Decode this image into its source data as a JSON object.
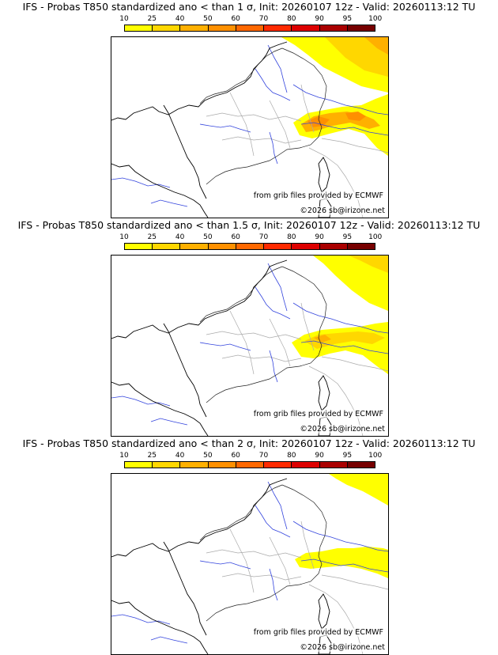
{
  "legend_levels": [
    "10",
    "25",
    "40",
    "50",
    "60",
    "70",
    "80",
    "90",
    "95",
    "100"
  ],
  "legend_colors": [
    "#ffff00",
    "#ffd700",
    "#ffb000",
    "#ff9000",
    "#ff6800",
    "#ff2a00",
    "#dd0000",
    "#aa0000",
    "#770000"
  ],
  "panels": [
    {
      "title": "IFS - Probas T850  standardized ano < than 1 σ, Init: 20260107 12z - Valid: 20260113:12 TU",
      "source": "from grib files provided by ECMWF",
      "copyright": "©2026 sb@irizone.net"
    },
    {
      "title": "IFS - Probas T850  standardized ano < than 1.5 σ, Init: 20260107 12z - Valid: 20260113:12 TU",
      "source": "from grib files provided by ECMWF",
      "copyright": "©2026 sb@irizone.net"
    },
    {
      "title": "IFS - Probas T850  standardized ano < than 2 σ, Init: 20260107 12z - Valid: 20260113:12 TU",
      "source": "from grib files provided by ECMWF",
      "copyright": "©2026 sb@irizone.net"
    }
  ]
}
